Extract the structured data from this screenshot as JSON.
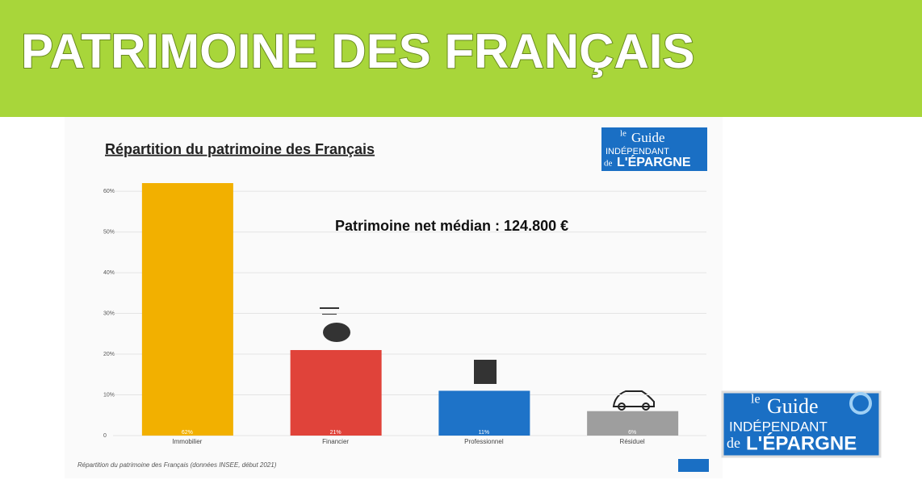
{
  "banner": {
    "title": "PATRIMOINE DES FRANÇAIS"
  },
  "logo": {
    "le": "le",
    "guide": "Guide",
    "independant": "INDÉPENDANT",
    "de": "de",
    "epargne": "L'ÉPARGNE"
  },
  "chart_data": {
    "type": "bar",
    "title": "Répartition du patrimoine des Français",
    "annotation": "Patrimoine net médian : 124.800 €",
    "caption": "Répartition du patrimoine des Français (données INSEE, début 2021)",
    "categories": [
      "Immobilier",
      "Financier",
      "Professionnel",
      "Résiduel"
    ],
    "values": [
      62,
      21,
      11,
      6
    ],
    "value_labels": [
      "62%",
      "21%",
      "11%",
      "6%"
    ],
    "colors": [
      "#f2b000",
      "#e0433a",
      "#1e73c8",
      "#9e9e9e"
    ],
    "ylim": [
      0,
      62
    ],
    "yticks": [
      0,
      {
        "value": 10,
        "label": "10%"
      },
      {
        "value": 20,
        "label": "20%"
      },
      {
        "value": 30,
        "label": "30%"
      },
      {
        "value": 40,
        "label": "40%"
      },
      {
        "value": 50,
        "label": "50%"
      },
      {
        "value": 60,
        "label": "60%"
      }
    ],
    "grid": true
  }
}
